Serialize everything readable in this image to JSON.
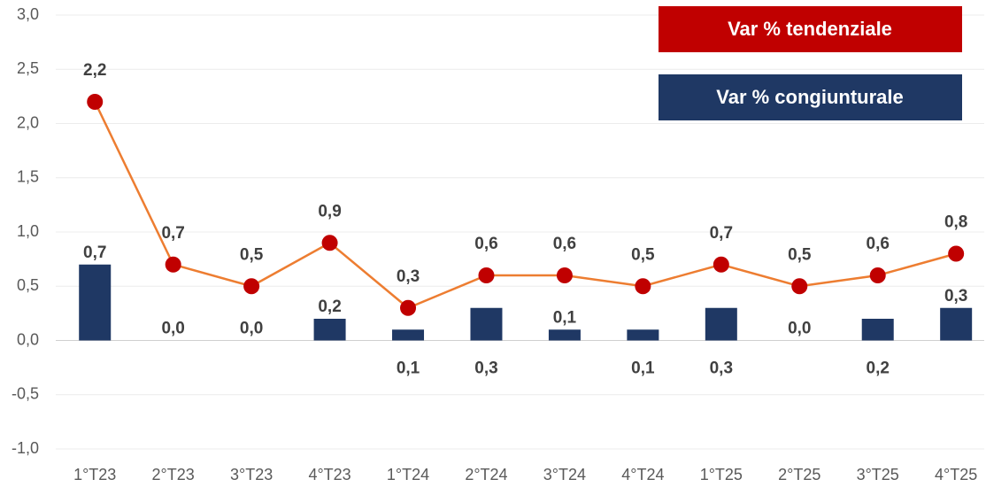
{
  "chart_data": {
    "type": "combo",
    "categories": [
      "1°T23",
      "2°T23",
      "3°T23",
      "4°T23",
      "1°T24",
      "2°T24",
      "3°T24",
      "4°T24",
      "1°T25",
      "2°T25",
      "3°T25",
      "4°T25"
    ],
    "series": [
      {
        "name": "Var % tendenziale",
        "type": "line",
        "color": "#c00000",
        "line_color": "#ed7d31",
        "values": [
          2.2,
          0.7,
          0.5,
          0.9,
          0.3,
          0.6,
          0.6,
          0.5,
          0.7,
          0.5,
          0.6,
          0.8
        ],
        "value_labels": [
          "2,2",
          "0,7",
          "0,5",
          "0,9",
          "0,3",
          "0,6",
          "0,6",
          "0,5",
          "0,7",
          "0,5",
          "0,6",
          "0,8"
        ]
      },
      {
        "name": "Var % congiunturale",
        "type": "bar",
        "color": "#1f3864",
        "values": [
          0.7,
          0.0,
          0.0,
          0.2,
          0.1,
          0.3,
          0.1,
          0.1,
          0.3,
          0.0,
          0.2,
          0.3
        ],
        "value_labels": [
          "0,7",
          "0,0",
          "0,0",
          "0,2",
          "0,1",
          "0,3",
          "0,1",
          "0,1",
          "0,3",
          "0,0",
          "0,2",
          "0,3"
        ]
      }
    ],
    "ylim": [
      -1.0,
      3.0
    ],
    "yticks": [
      {
        "value": -1.0,
        "label": "-1,0"
      },
      {
        "value": -0.5,
        "label": "-0,5"
      },
      {
        "value": 0.0,
        "label": "0,0"
      },
      {
        "value": 0.5,
        "label": "0,5"
      },
      {
        "value": 1.0,
        "label": "1,0"
      },
      {
        "value": 1.5,
        "label": "1,5"
      },
      {
        "value": 2.0,
        "label": "2,0"
      },
      {
        "value": 2.5,
        "label": "2,5"
      },
      {
        "value": 3.0,
        "label": "3,0"
      }
    ],
    "grid": true,
    "legend": "top-right"
  }
}
